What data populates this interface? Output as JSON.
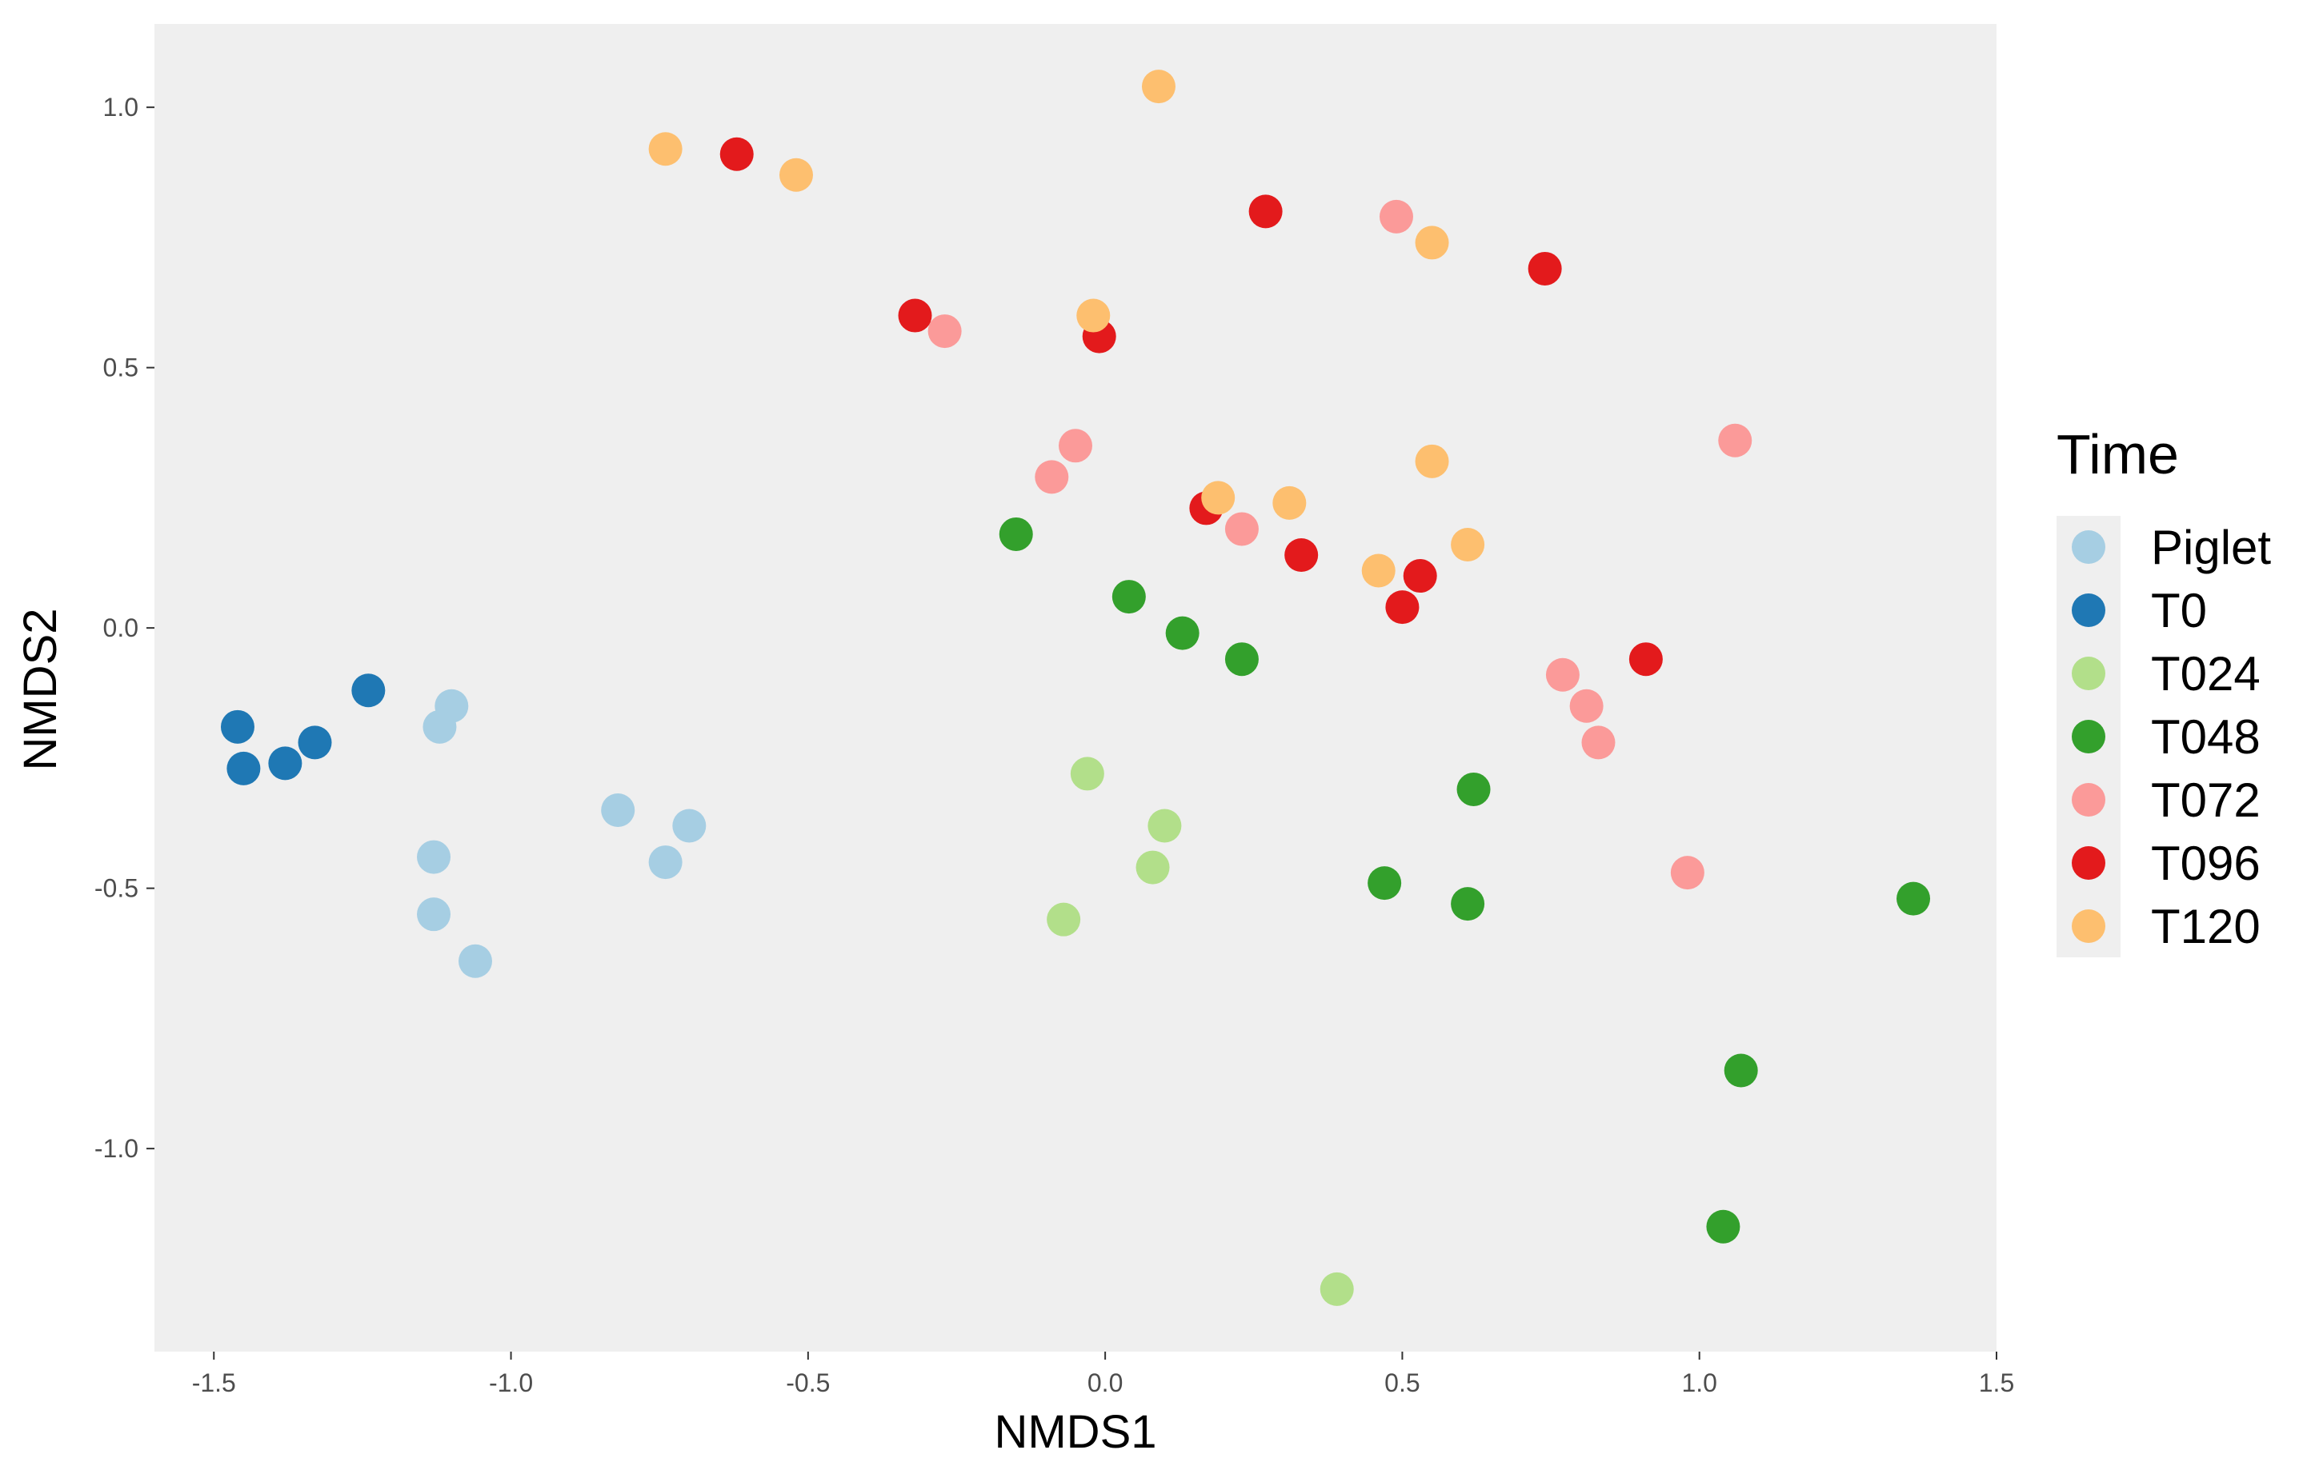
{
  "chart_data": {
    "type": "scatter",
    "xlabel": "NMDS1",
    "ylabel": "NMDS2",
    "xlim": [
      -1.6,
      1.5
    ],
    "ylim": [
      -1.39,
      1.16
    ],
    "x_ticks": [
      -1.5,
      -1.0,
      -0.5,
      0.0,
      0.5,
      1.0,
      1.5
    ],
    "x_tick_labels": [
      "-1.5",
      "-1.0",
      "-0.5",
      "0.0",
      "0.5",
      "1.0",
      "1.5"
    ],
    "y_ticks": [
      1.0,
      0.5,
      0.0,
      -0.5,
      -1.0
    ],
    "y_tick_labels": [
      "1.0",
      "0.5",
      "0.0",
      "-0.5",
      "-1.0"
    ],
    "grid": false,
    "panel_background": "#efefef",
    "legend": {
      "title": "Time",
      "position": "right"
    },
    "series": [
      {
        "name": "Piglet",
        "color": "#a6cee3",
        "points": [
          [
            -1.1,
            -0.15
          ],
          [
            -1.12,
            -0.19
          ],
          [
            -0.82,
            -0.35
          ],
          [
            -0.7,
            -0.38
          ],
          [
            -0.74,
            -0.45
          ],
          [
            -1.13,
            -0.44
          ],
          [
            -1.13,
            -0.55
          ],
          [
            -1.06,
            -0.64
          ]
        ]
      },
      {
        "name": "T0",
        "color": "#1f78b4",
        "points": [
          [
            -1.24,
            -0.12
          ],
          [
            -1.46,
            -0.19
          ],
          [
            -1.33,
            -0.22
          ],
          [
            -1.38,
            -0.26
          ],
          [
            -1.45,
            -0.27
          ]
        ]
      },
      {
        "name": "T024",
        "color": "#b2df8a",
        "points": [
          [
            -0.03,
            -0.28
          ],
          [
            0.1,
            -0.38
          ],
          [
            0.08,
            -0.46
          ],
          [
            -0.07,
            -0.56
          ],
          [
            0.39,
            -1.27
          ]
        ]
      },
      {
        "name": "T048",
        "color": "#33a02c",
        "points": [
          [
            -0.15,
            0.18
          ],
          [
            0.04,
            0.06
          ],
          [
            0.13,
            -0.01
          ],
          [
            0.23,
            -0.06
          ],
          [
            0.62,
            -0.31
          ],
          [
            0.47,
            -0.49
          ],
          [
            0.61,
            -0.53
          ],
          [
            1.36,
            -0.52
          ],
          [
            1.07,
            -0.85
          ],
          [
            1.04,
            -1.15
          ]
        ]
      },
      {
        "name": "T072",
        "color": "#fb9a99",
        "points": [
          [
            0.49,
            0.79
          ],
          [
            -0.27,
            0.57
          ],
          [
            -0.05,
            0.35
          ],
          [
            -0.09,
            0.29
          ],
          [
            0.23,
            0.19
          ],
          [
            1.06,
            0.36
          ],
          [
            0.77,
            -0.09
          ],
          [
            0.81,
            -0.15
          ],
          [
            0.83,
            -0.22
          ],
          [
            0.98,
            -0.47
          ]
        ]
      },
      {
        "name": "T096",
        "color": "#e31a1c",
        "points": [
          [
            -0.62,
            0.91
          ],
          [
            0.27,
            0.8
          ],
          [
            0.74,
            0.69
          ],
          [
            -0.32,
            0.6
          ],
          [
            -0.01,
            0.56
          ],
          [
            0.17,
            0.23
          ],
          [
            0.33,
            0.14
          ],
          [
            0.53,
            0.1
          ],
          [
            0.5,
            0.04
          ],
          [
            0.91,
            -0.06
          ]
        ]
      },
      {
        "name": "T120",
        "color": "#fdbf6f",
        "points": [
          [
            0.09,
            1.04
          ],
          [
            -0.74,
            0.92
          ],
          [
            -0.52,
            0.87
          ],
          [
            0.55,
            0.74
          ],
          [
            -0.02,
            0.6
          ],
          [
            0.55,
            0.32
          ],
          [
            0.19,
            0.25
          ],
          [
            0.31,
            0.24
          ],
          [
            0.61,
            0.16
          ],
          [
            0.46,
            0.11
          ]
        ]
      }
    ]
  }
}
